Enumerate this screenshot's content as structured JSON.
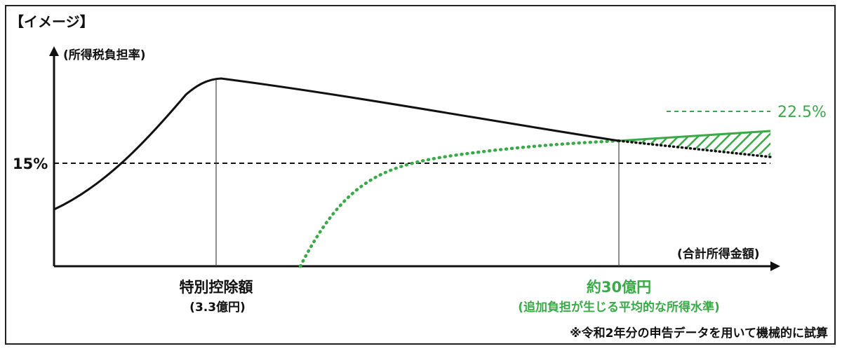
{
  "header": {
    "label": "【イメージ】"
  },
  "chart_data": {
    "type": "line",
    "ylabel": "(所得税負担率)",
    "xlabel": "(合計所得金額)",
    "y_reference": {
      "label": "15%",
      "value": 15
    },
    "target_level": {
      "label": "22.5%",
      "value": 22.5
    },
    "markers": [
      {
        "label": "特別控除額",
        "sublabel": "(3.3億円)"
      },
      {
        "label": "約30億円",
        "sublabel": "(追加負担が生じる平均的な所得水準)"
      }
    ],
    "series": [],
    "note": "※令和2年分の申告データを用いて機械的に試算"
  },
  "colors": {
    "curve": "#111111",
    "accent_green": "#3aaa48",
    "axis": "#111111"
  }
}
